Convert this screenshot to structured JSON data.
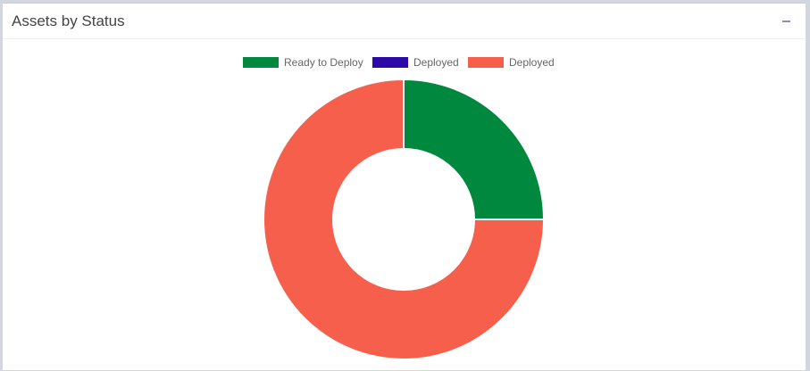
{
  "panel": {
    "title": "Assets by Status",
    "collapse_icon": "minus-icon"
  },
  "chart_data": {
    "type": "pie",
    "variant": "doughnut",
    "title": "",
    "legend_position": "top",
    "series": [
      {
        "name": "Ready to Deploy",
        "value": 25,
        "color": "#00893e"
      },
      {
        "name": "Deployed",
        "value": 0,
        "color": "#2c0aa8"
      },
      {
        "name": "Deployed",
        "value": 75,
        "color": "#f65f4c"
      }
    ]
  }
}
